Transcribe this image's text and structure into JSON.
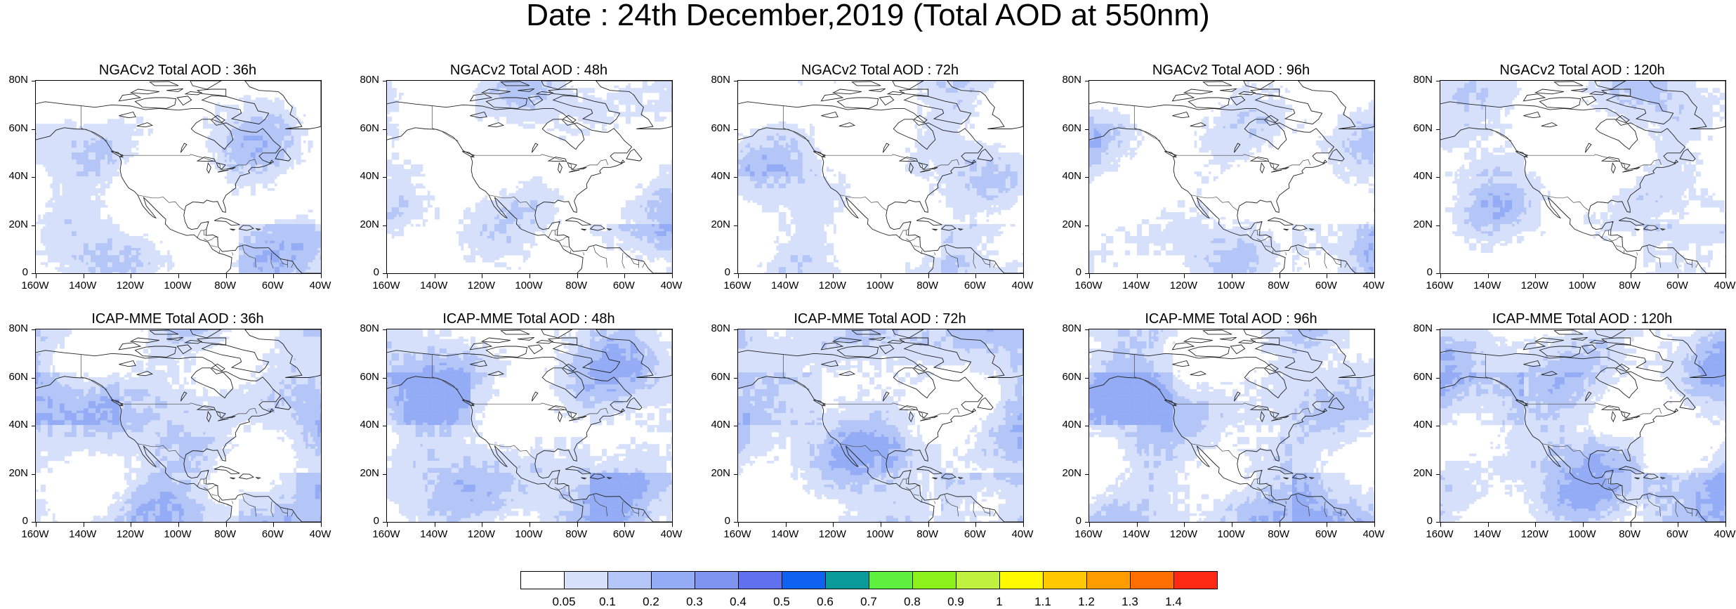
{
  "title": "Date : 24th December,2019 (Total AOD at 550nm)",
  "y_ticks": [
    "80N",
    "60N",
    "40N",
    "20N",
    "0"
  ],
  "x_ticks": [
    "160W",
    "140W",
    "120W",
    "100W",
    "80W",
    "60W",
    "40W"
  ],
  "map_extent": {
    "lon": [
      -160,
      -40
    ],
    "lat": [
      0,
      80
    ]
  },
  "panels": [
    {
      "title": "NGACv2 Total AOD : 36h",
      "model": "NGACv2",
      "lead": "36h",
      "intensity": 1
    },
    {
      "title": "NGACv2 Total AOD : 48h",
      "model": "NGACv2",
      "lead": "48h",
      "intensity": 1
    },
    {
      "title": "NGACv2 Total AOD : 72h",
      "model": "NGACv2",
      "lead": "72h",
      "intensity": 1
    },
    {
      "title": "NGACv2 Total AOD : 96h",
      "model": "NGACv2",
      "lead": "96h",
      "intensity": 1
    },
    {
      "title": "NGACv2 Total AOD : 120h",
      "model": "NGACv2",
      "lead": "120h",
      "intensity": 1
    },
    {
      "title": "ICAP-MME Total AOD : 36h",
      "model": "ICAP-MME",
      "lead": "36h",
      "intensity": 2
    },
    {
      "title": "ICAP-MME Total AOD : 48h",
      "model": "ICAP-MME",
      "lead": "48h",
      "intensity": 2
    },
    {
      "title": "ICAP-MME Total AOD : 72h",
      "model": "ICAP-MME",
      "lead": "72h",
      "intensity": 2
    },
    {
      "title": "ICAP-MME Total AOD : 96h",
      "model": "ICAP-MME",
      "lead": "96h",
      "intensity": 2
    },
    {
      "title": "ICAP-MME Total AOD : 120h",
      "model": "ICAP-MME",
      "lead": "120h",
      "intensity": 2
    }
  ],
  "colorbar": {
    "levels": [
      "0.05",
      "0.1",
      "0.2",
      "0.3",
      "0.4",
      "0.5",
      "0.6",
      "0.7",
      "0.8",
      "0.9",
      "1",
      "1.1",
      "1.2",
      "1.3",
      "1.4"
    ],
    "colors": [
      "#ffffff",
      "#d6e0fa",
      "#b4c6f7",
      "#93acf5",
      "#7f94f0",
      "#6070ee",
      "#0f62f0",
      "#0b9a9a",
      "#5ef03e",
      "#8cf01a",
      "#bff23e",
      "#fffa00",
      "#ffc800",
      "#ff9c00",
      "#ff6e00",
      "#ff2a14"
    ]
  }
}
